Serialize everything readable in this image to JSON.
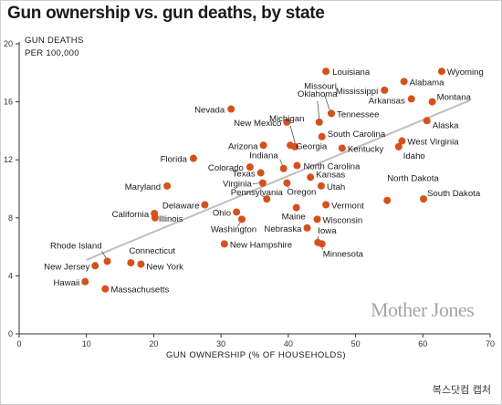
{
  "chart_data": {
    "type": "scatter",
    "title": "Gun ownership vs. gun deaths, by state",
    "ylabel_line1": "GUN DEATHS",
    "ylabel_line2": "PER 100,000",
    "xlabel": "GUN OWNERSHIP (% OF HOUSEHOLDS)",
    "xlim": [
      0,
      70
    ],
    "ylim": [
      0,
      20
    ],
    "xticks": [
      0,
      10,
      20,
      30,
      40,
      50,
      60,
      70
    ],
    "yticks": [
      0,
      4,
      8,
      12,
      16,
      20
    ],
    "grid": false,
    "trendline": {
      "x": [
        10,
        67
      ],
      "y": [
        5.1,
        16.1
      ]
    },
    "marker_color": "#d4511c",
    "trend_color": "#bfbfbf",
    "points": [
      {
        "label": "Louisiana",
        "x": 45.6,
        "y": 18.1
      },
      {
        "label": "Wyoming",
        "x": 62.8,
        "y": 18.1
      },
      {
        "label": "Alabama",
        "x": 57.2,
        "y": 17.4
      },
      {
        "label": "Mississippi",
        "x": 54.3,
        "y": 16.8
      },
      {
        "label": "Montana",
        "x": 61.4,
        "y": 16.0
      },
      {
        "label": "Arkansas",
        "x": 58.3,
        "y": 16.2
      },
      {
        "label": "Oklahoma",
        "x": 44.6,
        "y": 14.6
      },
      {
        "label": "Nevada",
        "x": 31.5,
        "y": 15.5
      },
      {
        "label": "Missouri",
        "x": 46.4,
        "y": 15.2
      },
      {
        "label": "Tennessee",
        "x": 46.4,
        "y": 15.2
      },
      {
        "label": "New Mexico",
        "x": 39.8,
        "y": 14.6
      },
      {
        "label": "Alaska",
        "x": 60.6,
        "y": 14.7
      },
      {
        "label": "South Carolina",
        "x": 45.0,
        "y": 13.6
      },
      {
        "label": "Michigan",
        "x": 41.0,
        "y": 12.9
      },
      {
        "label": "Arizona",
        "x": 36.3,
        "y": 13.0
      },
      {
        "label": "Georgia",
        "x": 40.3,
        "y": 13.0
      },
      {
        "label": "Kentucky",
        "x": 48.0,
        "y": 12.8
      },
      {
        "label": "West Virginia",
        "x": 56.9,
        "y": 13.3
      },
      {
        "label": "Idaho",
        "x": 56.4,
        "y": 12.9
      },
      {
        "label": "Florida",
        "x": 25.9,
        "y": 12.1
      },
      {
        "label": "Indiana",
        "x": 39.3,
        "y": 11.4
      },
      {
        "label": "Colorado",
        "x": 34.3,
        "y": 11.5
      },
      {
        "label": "North Carolina",
        "x": 41.3,
        "y": 11.6
      },
      {
        "label": "Texas",
        "x": 35.9,
        "y": 11.1
      },
      {
        "label": "Kansas",
        "x": 43.3,
        "y": 10.8
      },
      {
        "label": "Virginia",
        "x": 36.2,
        "y": 10.4
      },
      {
        "label": "Utah",
        "x": 44.9,
        "y": 10.2
      },
      {
        "label": "Oregon",
        "x": 39.8,
        "y": 10.4
      },
      {
        "label": "Maryland",
        "x": 22.0,
        "y": 10.2
      },
      {
        "label": "Pennsylvania",
        "x": 36.8,
        "y": 9.3
      },
      {
        "label": "North Dakota",
        "x": 54.7,
        "y": 9.2
      },
      {
        "label": "South Dakota",
        "x": 60.1,
        "y": 9.3
      },
      {
        "label": "Delaware",
        "x": 27.6,
        "y": 8.9
      },
      {
        "label": "Vermont",
        "x": 45.6,
        "y": 8.9
      },
      {
        "label": "California",
        "x": 20.1,
        "y": 8.3
      },
      {
        "label": "Illinois",
        "x": 20.2,
        "y": 8.0
      },
      {
        "label": "Ohio",
        "x": 32.3,
        "y": 8.4
      },
      {
        "label": "Maine",
        "x": 41.2,
        "y": 8.7
      },
      {
        "label": "Wisconsin",
        "x": 44.3,
        "y": 7.9
      },
      {
        "label": "Washington",
        "x": 33.1,
        "y": 7.9
      },
      {
        "label": "Nebraska",
        "x": 42.8,
        "y": 7.3
      },
      {
        "label": "Iowa",
        "x": 44.4,
        "y": 6.3
      },
      {
        "label": "New Hampshire",
        "x": 30.5,
        "y": 6.2
      },
      {
        "label": "Minnesota",
        "x": 45.0,
        "y": 6.2
      },
      {
        "label": "Rhode Island",
        "x": 13.1,
        "y": 5.0
      },
      {
        "label": "New Jersey",
        "x": 11.3,
        "y": 4.7
      },
      {
        "label": "Connecticut",
        "x": 16.6,
        "y": 4.9
      },
      {
        "label": "New York",
        "x": 18.1,
        "y": 4.8
      },
      {
        "label": "Hawaii",
        "x": 9.8,
        "y": 3.6
      },
      {
        "label": "Massachusetts",
        "x": 12.8,
        "y": 3.1
      }
    ]
  },
  "source": "Mother Jones",
  "caption": "복스닷컴 캡처"
}
